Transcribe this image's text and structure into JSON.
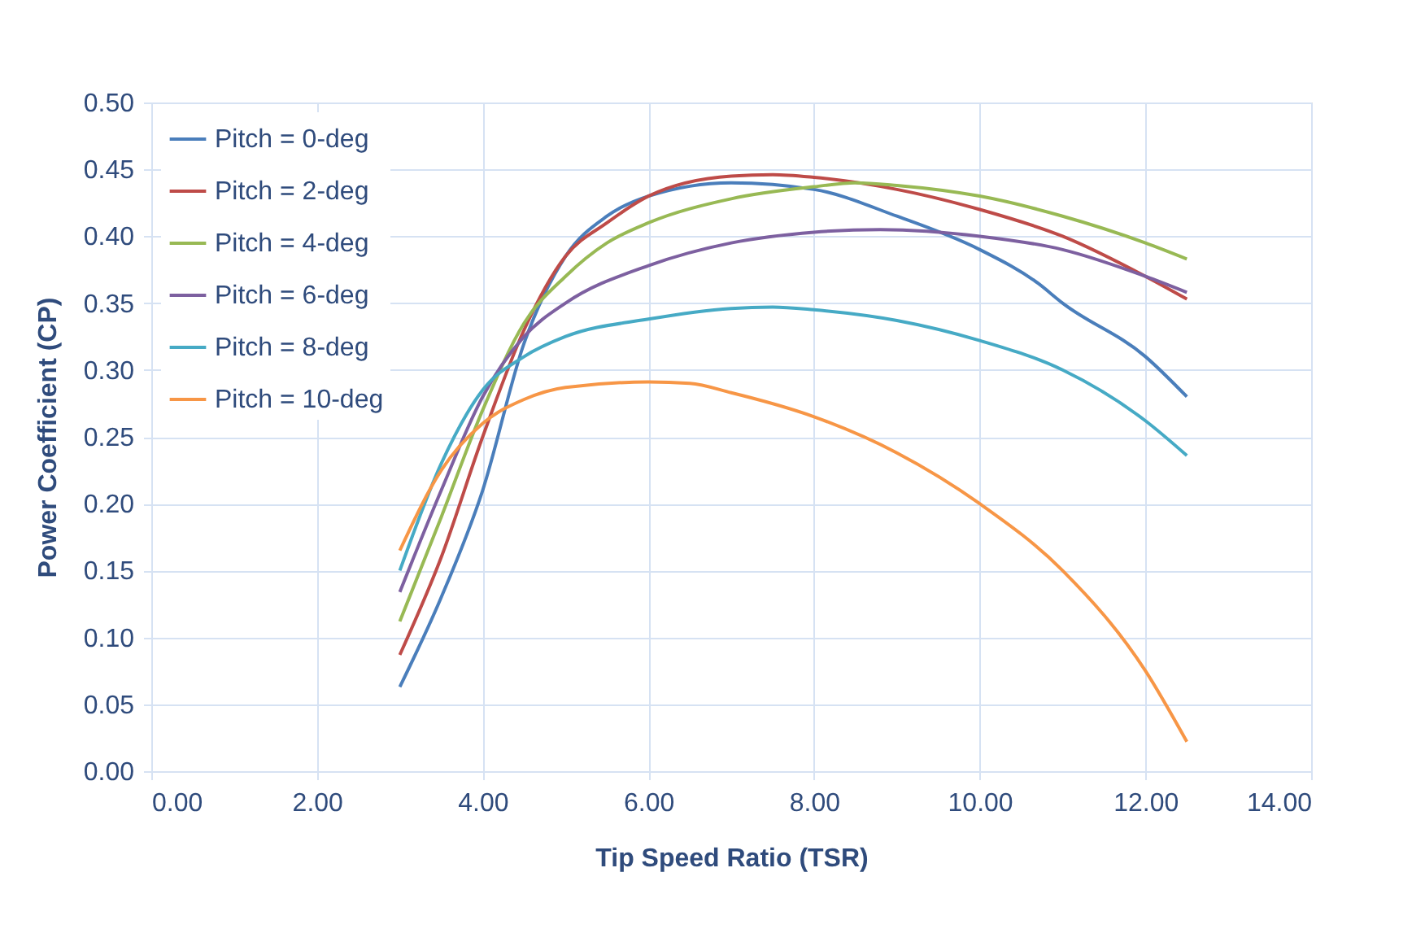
{
  "chart_data": {
    "type": "line",
    "xlabel": "Tip Speed Ratio (TSR)",
    "ylabel": "Power Coefficient (CP)",
    "xlim": [
      0,
      14
    ],
    "ylim": [
      0,
      0.5
    ],
    "xticks": [
      {
        "value": 0,
        "label": "0.00"
      },
      {
        "value": 2,
        "label": "2.00"
      },
      {
        "value": 4,
        "label": "4.00"
      },
      {
        "value": 6,
        "label": "6.00"
      },
      {
        "value": 8,
        "label": "8.00"
      },
      {
        "value": 10,
        "label": "10.00"
      },
      {
        "value": 12,
        "label": "12.00"
      },
      {
        "value": 14,
        "label": "14.00"
      }
    ],
    "yticks": [
      {
        "value": 0,
        "label": "0.00"
      },
      {
        "value": 0.05,
        "label": "0.05"
      },
      {
        "value": 0.1,
        "label": "0.10"
      },
      {
        "value": 0.15,
        "label": "0.15"
      },
      {
        "value": 0.2,
        "label": "0.20"
      },
      {
        "value": 0.25,
        "label": "0.25"
      },
      {
        "value": 0.3,
        "label": "0.30"
      },
      {
        "value": 0.35,
        "label": "0.35"
      },
      {
        "value": 0.4,
        "label": "0.40"
      },
      {
        "value": 0.45,
        "label": "0.45"
      },
      {
        "value": 0.5,
        "label": "0.50"
      }
    ],
    "grid": true,
    "legend": "top left",
    "marker": "none",
    "line_style": "solid",
    "series": [
      {
        "name": "Pitch = 0-deg",
        "color": "#4a7ebb",
        "x": [
          3,
          3.5,
          4,
          4.5,
          5,
          5.5,
          6,
          7,
          8,
          9,
          10,
          10.7,
          11,
          12,
          12.5
        ],
        "values": [
          0.063,
          0.13,
          0.21,
          0.32,
          0.385,
          0.415,
          0.43,
          0.44,
          0.435,
          0.415,
          0.39,
          0.365,
          0.35,
          0.31,
          0.28
        ]
      },
      {
        "name": "Pitch = 2-deg",
        "color": "#be4b48",
        "x": [
          3,
          3.5,
          4,
          4.5,
          5,
          5.5,
          6,
          7,
          7.5,
          8,
          9,
          10,
          11,
          12,
          12.5
        ],
        "values": [
          0.087,
          0.16,
          0.25,
          0.33,
          0.385,
          0.41,
          0.43,
          0.445,
          0.446,
          0.444,
          0.435,
          0.42,
          0.4,
          0.37,
          0.353
        ]
      },
      {
        "name": "Pitch = 4-deg",
        "color": "#98b954",
        "x": [
          3,
          3.5,
          4,
          4.5,
          5,
          5.5,
          6,
          7,
          8,
          8.5,
          9,
          10,
          11,
          12,
          12.5
        ],
        "values": [
          0.112,
          0.19,
          0.27,
          0.335,
          0.37,
          0.395,
          0.41,
          0.428,
          0.437,
          0.44,
          0.438,
          0.43,
          0.415,
          0.395,
          0.383
        ]
      },
      {
        "name": "Pitch = 6-deg",
        "color": "#7d60a0",
        "x": [
          3,
          3.5,
          4,
          4.5,
          5,
          6,
          7,
          8,
          8.8,
          10,
          11,
          12,
          12.5
        ],
        "values": [
          0.134,
          0.21,
          0.28,
          0.325,
          0.35,
          0.378,
          0.395,
          0.403,
          0.405,
          0.4,
          0.39,
          0.37,
          0.358
        ]
      },
      {
        "name": "Pitch = 8-deg",
        "color": "#46aac5",
        "x": [
          3,
          3.5,
          4,
          4.5,
          5,
          6,
          7,
          7.5,
          8,
          9,
          10,
          11,
          12,
          12.5
        ],
        "values": [
          0.15,
          0.23,
          0.285,
          0.31,
          0.325,
          0.338,
          0.346,
          0.347,
          0.345,
          0.337,
          0.322,
          0.3,
          0.262,
          0.236
        ]
      },
      {
        "name": "Pitch = 10-deg",
        "color": "#f79646",
        "x": [
          3,
          3.5,
          4,
          4.5,
          5,
          6,
          6.5,
          7,
          8,
          9,
          10,
          11,
          12,
          12.5
        ],
        "values": [
          0.165,
          0.225,
          0.26,
          0.278,
          0.287,
          0.291,
          0.29,
          0.283,
          0.265,
          0.238,
          0.2,
          0.15,
          0.075,
          0.022
        ]
      }
    ]
  }
}
